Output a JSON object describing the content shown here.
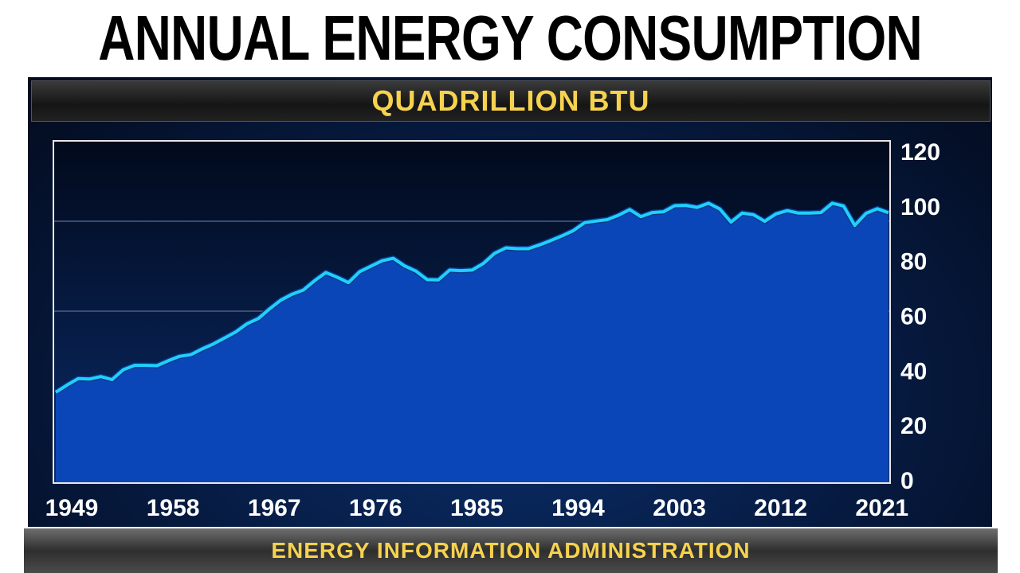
{
  "chart_data": {
    "type": "area",
    "title": "ANNUAL ENERGY CONSUMPTION",
    "subtitle": "QUADRILLION BTU",
    "source": "ENERGY INFORMATION ADMINISTRATION",
    "xlabel": "",
    "ylabel": "",
    "ylim": [
      0,
      120
    ],
    "xlim": [
      1949,
      2023
    ],
    "yticks": [
      "0",
      "20",
      "40",
      "60",
      "80",
      "100",
      "120"
    ],
    "xticks": [
      "1949",
      "1958",
      "1967",
      "1976",
      "1985",
      "1994",
      "2003",
      "2012",
      "2021"
    ],
    "grid": false,
    "colors": {
      "fill": "#0b46b8",
      "line": "#1fd0ff"
    },
    "x": [
      1949,
      1950,
      1951,
      1952,
      1953,
      1954,
      1955,
      1956,
      1957,
      1958,
      1959,
      1960,
      1961,
      1962,
      1963,
      1964,
      1965,
      1966,
      1967,
      1968,
      1969,
      1970,
      1971,
      1972,
      1973,
      1974,
      1975,
      1976,
      1977,
      1978,
      1979,
      1980,
      1981,
      1982,
      1983,
      1984,
      1985,
      1986,
      1987,
      1988,
      1989,
      1990,
      1991,
      1992,
      1993,
      1994,
      1995,
      1996,
      1997,
      1998,
      1999,
      2000,
      2001,
      2002,
      2003,
      2004,
      2005,
      2006,
      2007,
      2008,
      2009,
      2010,
      2011,
      2012,
      2013,
      2014,
      2015,
      2016,
      2017,
      2018,
      2019,
      2020,
      2021,
      2022,
      2023
    ],
    "values": [
      32.0,
      34.6,
      37.0,
      36.8,
      37.7,
      36.6,
      40.2,
      41.8,
      41.8,
      41.7,
      43.5,
      45.1,
      45.7,
      47.8,
      49.6,
      51.8,
      54.0,
      57.0,
      58.9,
      62.4,
      65.6,
      67.8,
      69.3,
      72.7,
      75.7,
      74.0,
      72.0,
      76.0,
      78.0,
      80.0,
      80.9,
      78.1,
      76.2,
      73.1,
      73.0,
      76.6,
      76.4,
      76.6,
      79.0,
      82.7,
      84.7,
      84.4,
      84.4,
      85.8,
      87.4,
      89.1,
      91.0,
      93.9,
      94.5,
      95.0,
      96.6,
      98.7,
      96.1,
      97.6,
      97.9,
      100.1,
      100.2,
      99.5,
      101.0,
      98.9,
      94.1,
      97.4,
      96.8,
      94.4,
      97.1,
      98.3,
      97.4,
      97.4,
      97.6,
      101.0,
      100.0,
      92.9,
      97.3,
      99.0,
      97.5
    ]
  }
}
